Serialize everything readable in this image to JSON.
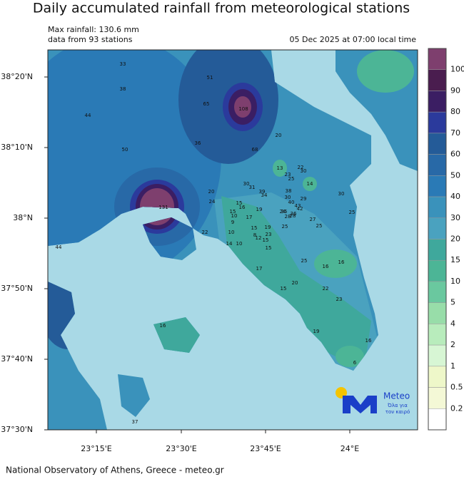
{
  "title": "Daily accumulated rainfall from meteorological stations",
  "info": {
    "max_rainfall": "Max rainfall: 130.6 mm",
    "stations_count": "data from 93 stations",
    "timestamp": "05 Dec 2025 at 07:00 local time"
  },
  "map": {
    "lat_labels": [
      "38°20'N",
      "38°10'N",
      "38°N",
      "37°50'N",
      "37°40'N",
      "37°30'N"
    ],
    "lon_labels": [
      "23°15'E",
      "23°30'E",
      "23°45'E",
      "24°E"
    ],
    "stations": [
      33,
      51,
      38,
      65,
      108,
      44,
      20,
      36,
      50,
      68,
      13,
      22,
      30,
      23,
      25,
      14,
      30,
      31,
      20,
      39,
      38,
      30,
      34,
      30,
      29,
      24,
      15,
      40,
      16,
      43,
      42,
      131,
      15,
      19,
      24,
      35,
      25,
      10,
      17,
      28,
      28,
      36,
      9,
      27,
      25,
      25,
      15,
      22,
      10,
      23,
      19,
      8,
      12,
      15,
      14,
      10,
      15,
      44,
      25,
      16,
      16,
      17,
      20,
      15,
      22,
      23,
      16,
      19,
      16,
      37,
      6
    ]
  },
  "colorbar": {
    "levels": [
      100,
      90,
      80,
      70,
      60,
      50,
      40,
      30,
      20,
      15,
      10,
      5,
      4,
      2,
      1,
      0.5,
      0.2
    ],
    "colors": [
      "#7e3f6e",
      "#4a1d4f",
      "#3b1e63",
      "#2b3a9c",
      "#245b98",
      "#2869a7",
      "#2a7ab6",
      "#3a92bb",
      "#4aa2bf",
      "#3fa89c",
      "#4cb596",
      "#6ac89f",
      "#98dda9",
      "#b8ecbc",
      "#d7f6d4",
      "#eef7c9",
      "#f4f8d6",
      "#ffffff"
    ]
  },
  "logo": {
    "name": "Meteo",
    "tagline": [
      "Όλα για",
      "τον καιρό"
    ]
  },
  "footer": "National Observatory of Athens, Greece - meteo.gr"
}
